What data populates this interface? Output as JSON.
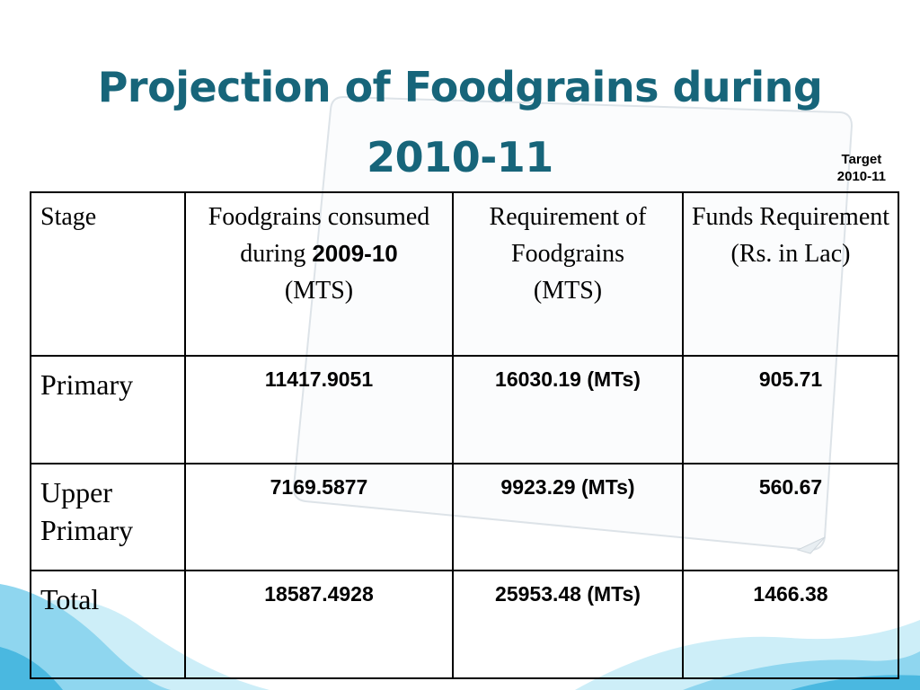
{
  "slide": {
    "title_line1": "Projection of Foodgrains during",
    "title_line2": "2010-11",
    "target_line1": "Target",
    "target_line2": "2010-11",
    "colors": {
      "title": "#17657a",
      "wave_light": "#bfe8f6",
      "wave_mid": "#7fd0ec",
      "wave_dark": "#4ab8e0"
    }
  },
  "table": {
    "headers": {
      "stage": "Stage",
      "consumed_text": "Foodgrains consumed during",
      "consumed_year": "2009-10",
      "consumed_unit": "(MTS)",
      "requirement_text": "Requirement of Foodgrains",
      "requirement_unit": "(MTS)",
      "funds_text": "Funds Requirement",
      "funds_unit": "(Rs. in Lac)"
    },
    "rows": [
      {
        "stage": "Primary",
        "consumed": "11417.9051",
        "requirement": "16030.19 (MTs)",
        "funds": "905.71"
      },
      {
        "stage": "Upper Primary",
        "consumed": "7169.5877",
        "requirement": "9923.29 (MTs)",
        "funds": "560.67"
      },
      {
        "stage": "Total",
        "consumed": "18587.4928",
        "requirement": "25953.48 (MTs)",
        "funds": "1466.38"
      }
    ]
  }
}
